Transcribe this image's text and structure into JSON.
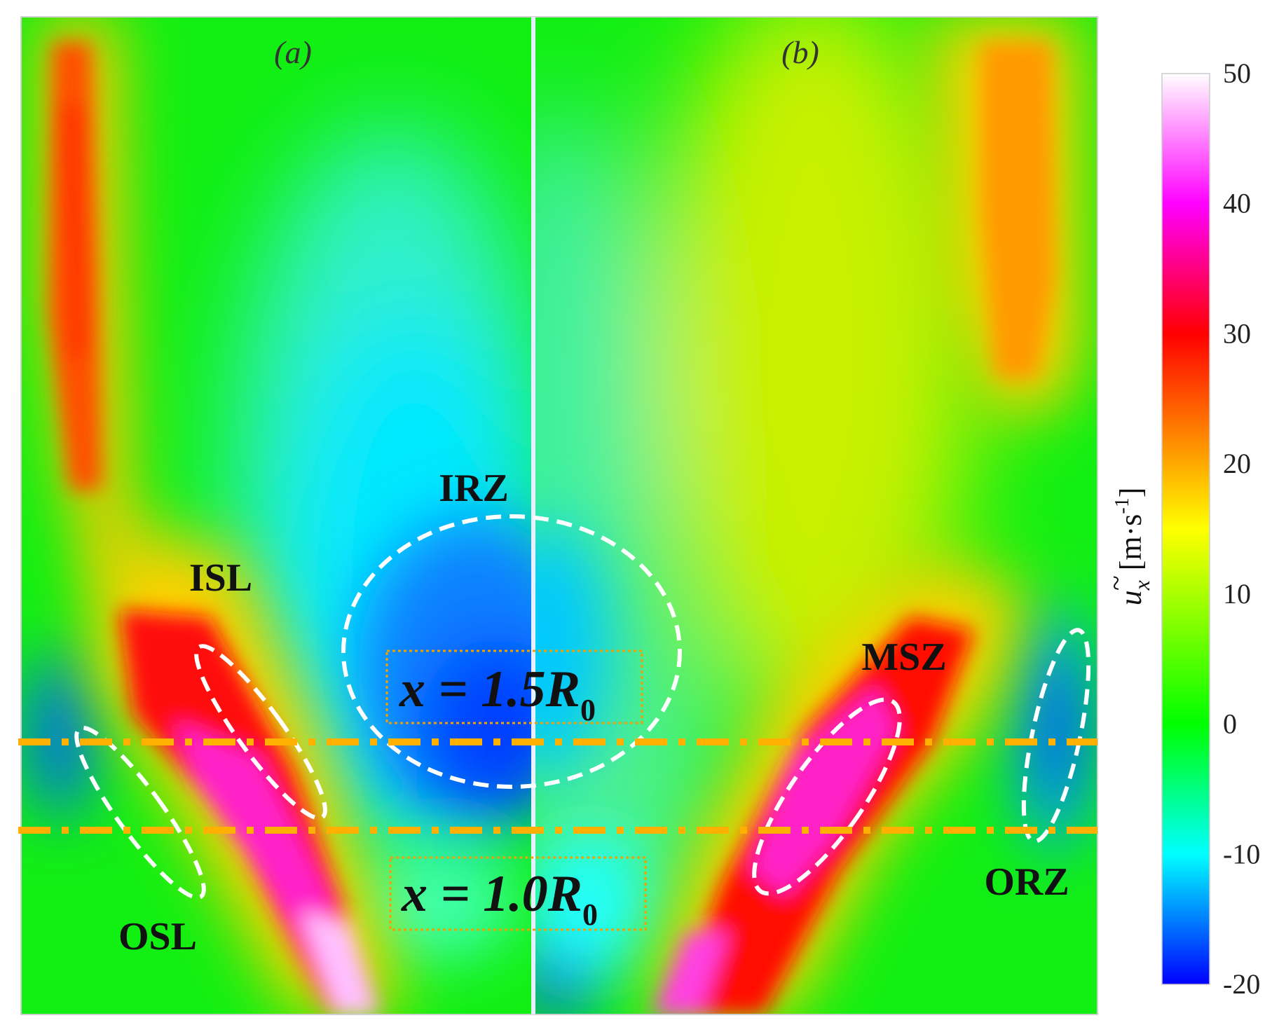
{
  "chart_data": {
    "type": "heatmap",
    "panels": [
      {
        "label": "(a)"
      },
      {
        "label": "(b)"
      }
    ],
    "colorbar": {
      "title": "ũx [m·s-1]",
      "title_parts": {
        "symbol": "u",
        "subscript": "x",
        "unit": "[m·s",
        "unit_exp": "-1",
        "unit_close": "]"
      },
      "min": -20,
      "max": 50,
      "ticks": [
        -20,
        -10,
        0,
        10,
        20,
        30,
        40,
        50
      ],
      "tick_labels": [
        "-20",
        "-10",
        "0",
        "10",
        "20",
        "30",
        "40",
        "50"
      ],
      "stops": [
        {
          "value": -20,
          "color": "#0000ff"
        },
        {
          "value": -10,
          "color": "#00ffff"
        },
        {
          "value": 0,
          "color": "#00ff00"
        },
        {
          "value": 15,
          "color": "#ffff00"
        },
        {
          "value": 30,
          "color": "#ff0000"
        },
        {
          "value": 40,
          "color": "#ff00ff"
        },
        {
          "value": 50,
          "color": "#ffffff"
        }
      ]
    },
    "region_labels": [
      "IRZ",
      "ISL",
      "OSL",
      "MSZ",
      "ORZ"
    ],
    "reference_lines": [
      {
        "label": "x = 1.5R0",
        "main": "x = 1.5",
        "var": "R",
        "sub": "0"
      },
      {
        "label": "x = 1.0R0",
        "main": "x = 1.0",
        "var": "R",
        "sub": "0"
      }
    ],
    "colors": {
      "reference_line": "#ffb000",
      "box_border": "#f0a000",
      "ellipse": "#ffffff",
      "background_field": "#10ee10"
    }
  }
}
